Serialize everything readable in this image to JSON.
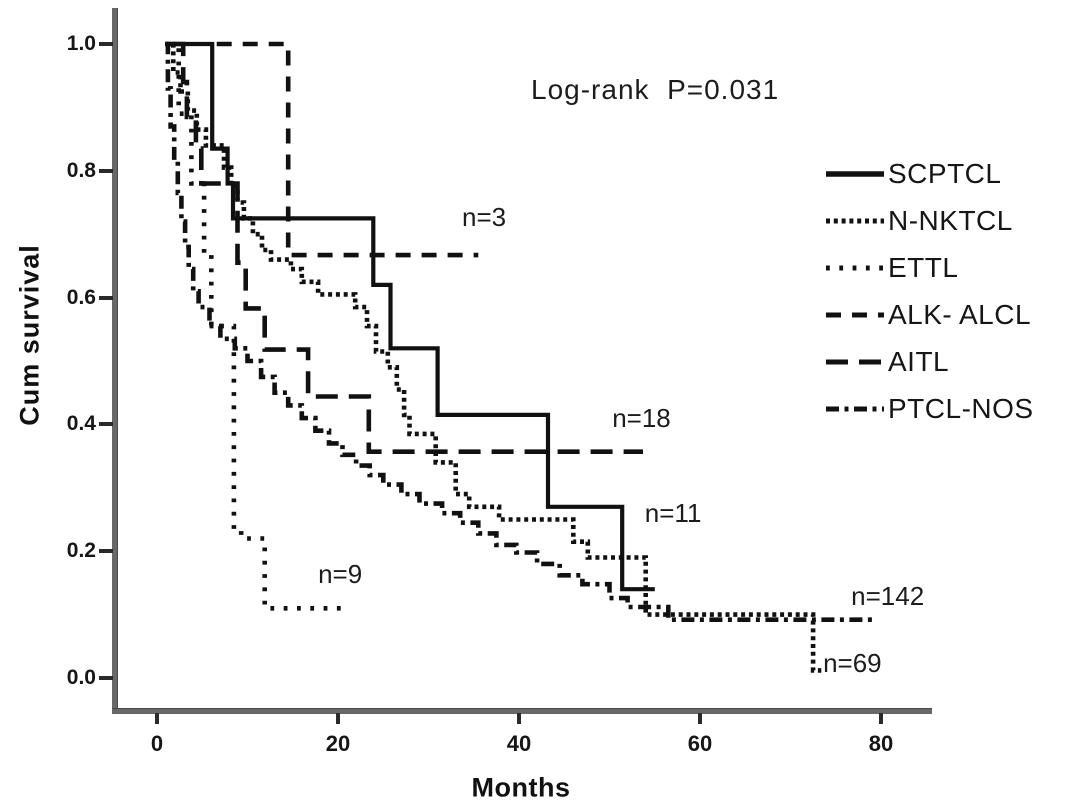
{
  "figure": {
    "log_rank_label": "Log-rank  P=0.031",
    "y_axis": {
      "title": "Cum survival",
      "tick_labels": [
        "1.0",
        "0.8",
        "0.6",
        "0.4",
        "0.2",
        "0.0"
      ],
      "tick_values": [
        1.0,
        0.8,
        0.6,
        0.4,
        0.2,
        0.0
      ]
    },
    "x_axis": {
      "title": "Months",
      "tick_labels": [
        "0",
        "20",
        "40",
        "60",
        "80"
      ],
      "tick_values": [
        0,
        20,
        40,
        60,
        80
      ]
    },
    "legend": [
      {
        "label": "SCPTCL",
        "style": "solid"
      },
      {
        "label": "N-NKTCL",
        "style": "dotted-dense"
      },
      {
        "label": "ETTL",
        "style": "dotted-sparse"
      },
      {
        "label": "ALK- ALCL",
        "style": "dashed"
      },
      {
        "label": "AITL",
        "style": "long-dash"
      },
      {
        "label": "PTCL-NOS",
        "style": "dash-dot"
      }
    ]
  },
  "chart_data": {
    "type": "line",
    "subtype": "kaplan-meier-step",
    "title": "",
    "xlabel": "Months",
    "ylabel": "Cum survival",
    "xlim": [
      0,
      84
    ],
    "ylim": [
      0.0,
      1.0
    ],
    "grid": false,
    "legend_position": "right",
    "p_value_annotation": "Log-rank P=0.031",
    "series": [
      {
        "name": "SCPTCL",
        "n": 11,
        "style": "solid",
        "color": "#111111",
        "points": [
          [
            1.2,
            1.0
          ],
          [
            6.1,
            0.835
          ],
          [
            7.8,
            0.78
          ],
          [
            8.4,
            0.725
          ],
          [
            23.9,
            0.62
          ],
          [
            25.8,
            0.52
          ],
          [
            31.0,
            0.415
          ],
          [
            43.2,
            0.27
          ],
          [
            51.4,
            0.14
          ],
          [
            55.0,
            0.14
          ]
        ]
      },
      {
        "name": "N-NKTCL",
        "n": 69,
        "style": "dotted-dense",
        "color": "#111111",
        "points": [
          [
            0.9,
            1.0
          ],
          [
            1.8,
            0.955
          ],
          [
            2.6,
            0.925
          ],
          [
            3.4,
            0.895
          ],
          [
            4.4,
            0.865
          ],
          [
            5.4,
            0.84
          ],
          [
            7.4,
            0.805
          ],
          [
            8.2,
            0.775
          ],
          [
            8.9,
            0.75
          ],
          [
            9.6,
            0.725
          ],
          [
            10.6,
            0.7
          ],
          [
            11.6,
            0.675
          ],
          [
            12.6,
            0.66
          ],
          [
            14.8,
            0.645
          ],
          [
            16.0,
            0.625
          ],
          [
            17.8,
            0.605
          ],
          [
            21.9,
            0.585
          ],
          [
            23.2,
            0.555
          ],
          [
            24.2,
            0.515
          ],
          [
            25.5,
            0.49
          ],
          [
            26.5,
            0.455
          ],
          [
            27.3,
            0.415
          ],
          [
            27.9,
            0.385
          ],
          [
            30.8,
            0.34
          ],
          [
            33.0,
            0.29
          ],
          [
            34.5,
            0.27
          ],
          [
            37.8,
            0.25
          ],
          [
            46.0,
            0.215
          ],
          [
            47.6,
            0.19
          ],
          [
            54.0,
            0.1
          ],
          [
            72.5,
            0.012
          ],
          [
            73.4,
            0.012
          ]
        ]
      },
      {
        "name": "ETTL",
        "n": 9,
        "style": "dotted-sparse",
        "color": "#111111",
        "points": [
          [
            1.4,
            1.0
          ],
          [
            2.4,
            0.89
          ],
          [
            3.8,
            0.78
          ],
          [
            5.2,
            0.67
          ],
          [
            6.0,
            0.555
          ],
          [
            8.5,
            0.235
          ],
          [
            9.3,
            0.22
          ],
          [
            11.9,
            0.11
          ],
          [
            21.0,
            0.11
          ]
        ]
      },
      {
        "name": "ALK- ALCL",
        "n": 3,
        "style": "dashed",
        "color": "#111111",
        "points": [
          [
            6.6,
            1.0
          ],
          [
            14.5,
            0.667
          ],
          [
            35.5,
            0.667
          ]
        ]
      },
      {
        "name": "AITL",
        "n": 18,
        "style": "long-dash",
        "color": "#111111",
        "points": [
          [
            1.8,
            1.0
          ],
          [
            2.9,
            0.94
          ],
          [
            3.3,
            0.885
          ],
          [
            4.3,
            0.835
          ],
          [
            4.9,
            0.78
          ],
          [
            8.9,
            0.655
          ],
          [
            9.8,
            0.583
          ],
          [
            11.9,
            0.518
          ],
          [
            16.7,
            0.444
          ],
          [
            23.4,
            0.357
          ],
          [
            53.7,
            0.357
          ]
        ]
      },
      {
        "name": "PTCL-NOS",
        "n": 142,
        "style": "dash-dot",
        "color": "#111111",
        "points": [
          [
            0.9,
            1.0
          ],
          [
            1.2,
            0.93
          ],
          [
            1.5,
            0.87
          ],
          [
            1.9,
            0.815
          ],
          [
            2.3,
            0.765
          ],
          [
            2.7,
            0.72
          ],
          [
            3.1,
            0.68
          ],
          [
            3.5,
            0.645
          ],
          [
            4.0,
            0.61
          ],
          [
            4.6,
            0.585
          ],
          [
            5.8,
            0.555
          ],
          [
            7.0,
            0.535
          ],
          [
            8.6,
            0.52
          ],
          [
            10.0,
            0.5
          ],
          [
            11.5,
            0.475
          ],
          [
            13.0,
            0.45
          ],
          [
            14.5,
            0.43
          ],
          [
            16.0,
            0.41
          ],
          [
            17.5,
            0.39
          ],
          [
            19.0,
            0.37
          ],
          [
            20.5,
            0.352
          ],
          [
            22.0,
            0.335
          ],
          [
            23.5,
            0.32
          ],
          [
            25.0,
            0.305
          ],
          [
            27.0,
            0.29
          ],
          [
            29.0,
            0.275
          ],
          [
            31.5,
            0.26
          ],
          [
            33.5,
            0.245
          ],
          [
            35.5,
            0.228
          ],
          [
            37.5,
            0.21
          ],
          [
            39.7,
            0.198
          ],
          [
            42.0,
            0.18
          ],
          [
            44.5,
            0.162
          ],
          [
            47.0,
            0.148
          ],
          [
            50.0,
            0.126
          ],
          [
            52.0,
            0.112
          ],
          [
            56.5,
            0.092
          ],
          [
            79.2,
            0.092
          ]
        ]
      }
    ],
    "annotations": [
      {
        "text": "n=3",
        "series": "ALK- ALCL",
        "anchor_month": 33.7,
        "anchor_survival": 0.75
      },
      {
        "text": "n=18",
        "series": "AITL",
        "anchor_month": 50.3,
        "anchor_survival": 0.432
      },
      {
        "text": "n=11",
        "series": "SCPTCL",
        "anchor_month": 53.9,
        "anchor_survival": 0.282
      },
      {
        "text": "n=9",
        "series": "ETTL",
        "anchor_month": 17.8,
        "anchor_survival": 0.186
      },
      {
        "text": "n=142",
        "series": "PTCL-NOS",
        "anchor_month": 76.7,
        "anchor_survival": 0.152
      },
      {
        "text": "n=69",
        "series": "N-NKTCL",
        "anchor_month": 73.6,
        "anchor_survival": 0.046
      }
    ]
  }
}
